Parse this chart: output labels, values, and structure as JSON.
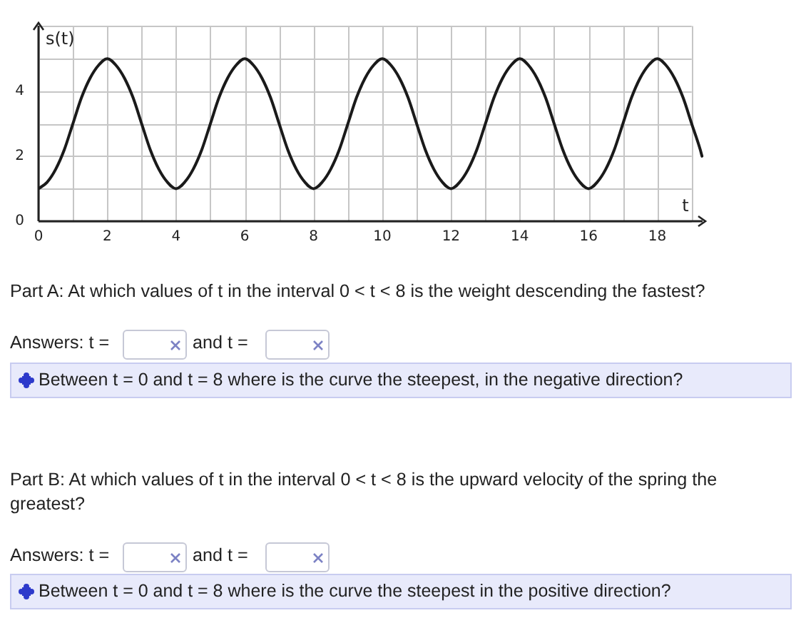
{
  "chart_data": {
    "type": "line",
    "xlabel": "t",
    "ylabel": "s(t)",
    "x": [
      0,
      0.25,
      0.5,
      0.75,
      1,
      1.25,
      1.5,
      1.75,
      2,
      2.25,
      2.5,
      2.75,
      3,
      3.25,
      3.5,
      3.75,
      4,
      4.25,
      4.5,
      4.75,
      5,
      5.25,
      5.5,
      5.75,
      6,
      6.25,
      6.5,
      6.75,
      7,
      7.25,
      7.5,
      7.75,
      8,
      8.25,
      8.5,
      8.75,
      9,
      9.25,
      9.5,
      9.75,
      10,
      10.25,
      10.5,
      10.75,
      11,
      11.25,
      11.5,
      11.75,
      12,
      12.25,
      12.5,
      12.75,
      13,
      13.25,
      13.5,
      13.75,
      14,
      14.25,
      14.5,
      14.75,
      15,
      15.25,
      15.5,
      15.75,
      16,
      16.25,
      16.5,
      16.75,
      17,
      17.25,
      17.5,
      17.75,
      18,
      18.25,
      18.5,
      18.75,
      19,
      19.25,
      19.3
    ],
    "values": [
      1,
      1.2,
      1.6,
      2.2,
      3,
      3.8,
      4.4,
      4.8,
      5,
      4.8,
      4.4,
      3.8,
      3,
      2.2,
      1.6,
      1.2,
      1,
      1.2,
      1.6,
      2.2,
      3,
      3.8,
      4.4,
      4.8,
      5,
      4.8,
      4.4,
      3.8,
      3,
      2.2,
      1.6,
      1.2,
      1,
      1.2,
      1.6,
      2.2,
      3,
      3.8,
      4.4,
      4.8,
      5,
      4.8,
      4.4,
      3.8,
      3,
      2.2,
      1.6,
      1.2,
      1,
      1.2,
      1.6,
      2.2,
      3,
      3.8,
      4.4,
      4.8,
      5,
      4.8,
      4.4,
      3.8,
      3,
      2.2,
      1.6,
      1.2,
      1,
      1.2,
      1.6,
      2.2,
      3,
      3.8,
      4.4,
      4.8,
      5,
      4.8,
      4.4,
      3.8,
      3,
      2.2,
      2
    ],
    "color": "#1a1a1a",
    "xlim": [
      0,
      19.4
    ],
    "ylim": [
      0,
      6.1
    ],
    "xticks": [
      0,
      {
        "value": 1,
        "label": null
      },
      2,
      {
        "value": 3,
        "label": null
      },
      4,
      {
        "value": 5,
        "label": null
      },
      6,
      {
        "value": 7,
        "label": null
      },
      8,
      {
        "value": 9,
        "label": null
      },
      10,
      {
        "value": 11,
        "label": null
      },
      12,
      {
        "value": 13,
        "label": null
      },
      14,
      {
        "value": 15,
        "label": null
      },
      16,
      {
        "value": 17,
        "label": null
      },
      18,
      {
        "value": 19,
        "label": null
      }
    ],
    "yticks": [
      0,
      {
        "value": 1,
        "label": null
      },
      2,
      {
        "value": 3,
        "label": null
      },
      4,
      {
        "value": 5,
        "label": null
      },
      {
        "value": 6,
        "label": null
      }
    ],
    "grid": true,
    "marker": "none",
    "line_style": "solid",
    "annotations": [
      "Part A: At which values of t in the interval 0 < t < 8 is the weight descending the fastest?",
      "Answers: t =",
      "and t =",
      "Between t = 0 and t = 8 where is the curve the steepest, in the negative direction?",
      "Part B: At which values of t in the interval 0 < t < 8 is the upward velocity of the spring the greatest?",
      "Answers: t =",
      "and t =",
      "Between t = 0 and t = 8 where is the curve the steepest in the positive direction?"
    ]
  }
}
